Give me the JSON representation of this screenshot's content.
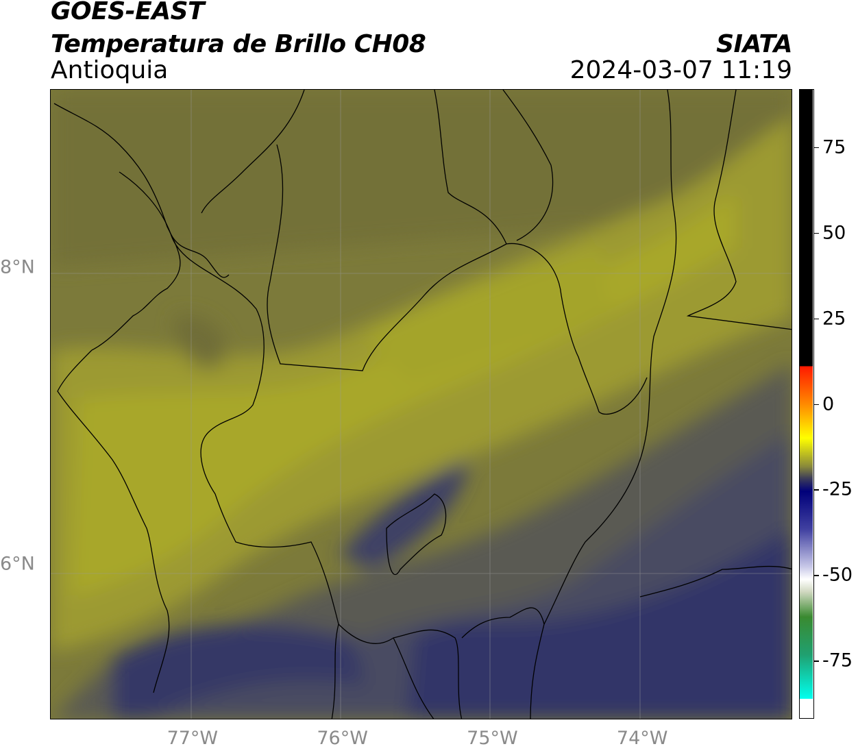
{
  "header": {
    "satellite": "GOES-EAST",
    "product": "Temperatura de Brillo CH08",
    "region": "Antioquia",
    "organization": "SIATA",
    "datetime": "2024-03-07 11:19"
  },
  "map_axes": {
    "x_ticks": [
      {
        "label": "77°W",
        "lon": -77
      },
      {
        "label": "76°W",
        "lon": -76
      },
      {
        "label": "75°W",
        "lon": -75
      },
      {
        "label": "74°W",
        "lon": -74
      }
    ],
    "y_ticks": [
      {
        "label": "8°N",
        "lat": 8
      },
      {
        "label": "6°N",
        "lat": 6
      }
    ],
    "extent": {
      "lon_min": -77.95,
      "lon_max": -73.0,
      "lat_min": 4.95,
      "lat_max": 9.2
    }
  },
  "colorbar": {
    "vmin": -92,
    "vmax": 92,
    "ticks": [
      {
        "label": "75",
        "value": 75
      },
      {
        "label": "50",
        "value": 50
      },
      {
        "label": "25",
        "value": 25
      },
      {
        "label": "0",
        "value": 0
      },
      {
        "label": "-25",
        "value": -25
      },
      {
        "label": "-50",
        "value": -50
      },
      {
        "label": "-75",
        "value": -75
      }
    ]
  },
  "colors": {
    "olive_dark": "#7a7838",
    "olive": "#8c8a3e",
    "yellow_olive": "#a8a82e",
    "gray_blue": "#4e5060",
    "navy": "#2a2e62"
  }
}
